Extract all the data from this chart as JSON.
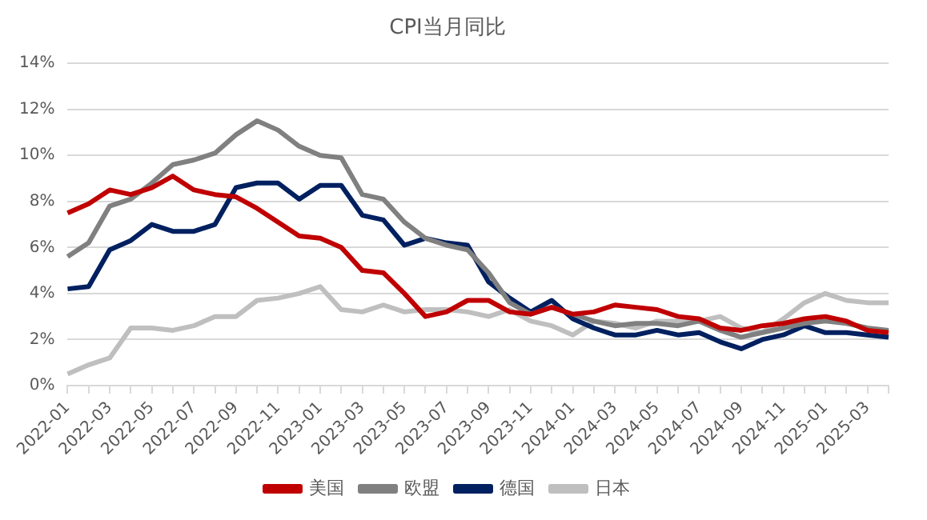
{
  "chart_data": {
    "type": "line",
    "title": "CPI当月同比",
    "categories": [
      "2022-01",
      null,
      "2022-03",
      null,
      "2022-05",
      null,
      "2022-07",
      null,
      "2022-09",
      null,
      "2022-11",
      null,
      "2023-01",
      null,
      "2023-03",
      null,
      "2023-05",
      null,
      "2023-07",
      null,
      "2023-09",
      null,
      "2023-11",
      null,
      "2024-01",
      null,
      "2024-03",
      null,
      "2024-05",
      null,
      "2024-07",
      null,
      "2024-09",
      null,
      "2024-11",
      null,
      "2025-01",
      null,
      "2025-03",
      null
    ],
    "series": [
      {
        "name": "美国",
        "color": "#c00000",
        "values": [
          7.5,
          7.9,
          8.5,
          8.3,
          8.6,
          9.1,
          8.5,
          8.3,
          8.2,
          7.7,
          7.1,
          6.5,
          6.4,
          6.0,
          5.0,
          4.9,
          4.0,
          3.0,
          3.2,
          3.7,
          3.7,
          3.2,
          3.1,
          3.4,
          3.1,
          3.2,
          3.5,
          3.4,
          3.3,
          3.0,
          2.9,
          2.5,
          2.4,
          2.6,
          2.7,
          2.9,
          3.0,
          2.8,
          2.4,
          2.3
        ]
      },
      {
        "name": "欧盟",
        "color": "#808080",
        "values": [
          5.6,
          6.2,
          7.8,
          8.1,
          8.8,
          9.6,
          9.8,
          10.1,
          10.9,
          11.5,
          11.1,
          10.4,
          10.0,
          9.9,
          8.3,
          8.1,
          7.1,
          6.4,
          6.1,
          5.9,
          4.9,
          3.6,
          3.1,
          3.4,
          3.1,
          2.8,
          2.6,
          2.7,
          2.7,
          2.6,
          2.8,
          2.4,
          2.1,
          2.3,
          2.5,
          2.7,
          2.8,
          2.7,
          2.5,
          2.4
        ]
      },
      {
        "name": "德国",
        "color": "#002060",
        "values": [
          4.2,
          4.3,
          5.9,
          6.3,
          7.0,
          6.7,
          6.7,
          7.0,
          8.6,
          8.8,
          8.8,
          8.1,
          8.7,
          8.7,
          7.4,
          7.2,
          6.1,
          6.4,
          6.2,
          6.1,
          4.5,
          3.8,
          3.2,
          3.7,
          2.9,
          2.5,
          2.2,
          2.2,
          2.4,
          2.2,
          2.3,
          1.9,
          1.6,
          2.0,
          2.2,
          2.6,
          2.3,
          2.3,
          2.2,
          2.1
        ]
      },
      {
        "name": "日本",
        "color": "#bfbfbf",
        "values": [
          0.5,
          0.9,
          1.2,
          2.5,
          2.5,
          2.4,
          2.6,
          3.0,
          3.0,
          3.7,
          3.8,
          4.0,
          4.3,
          3.3,
          3.2,
          3.5,
          3.2,
          3.3,
          3.3,
          3.2,
          3.0,
          3.3,
          2.8,
          2.6,
          2.2,
          2.8,
          2.7,
          2.5,
          2.8,
          2.8,
          2.8,
          3.0,
          2.5,
          2.3,
          2.9,
          3.6,
          4.0,
          3.7,
          3.6,
          3.6
        ]
      }
    ],
    "ylim": [
      0,
      14
    ],
    "yticks": [
      {
        "value": 0,
        "label": "0%"
      },
      {
        "value": 2,
        "label": "2%"
      },
      {
        "value": 4,
        "label": "4%"
      },
      {
        "value": 6,
        "label": "6%"
      },
      {
        "value": 8,
        "label": "8%"
      },
      {
        "value": 10,
        "label": "10%"
      },
      {
        "value": 12,
        "label": "12%"
      },
      {
        "value": 14,
        "label": "14%"
      }
    ],
    "grid": "y",
    "legend": "bottom",
    "marker": "none",
    "line_style": "solid"
  }
}
